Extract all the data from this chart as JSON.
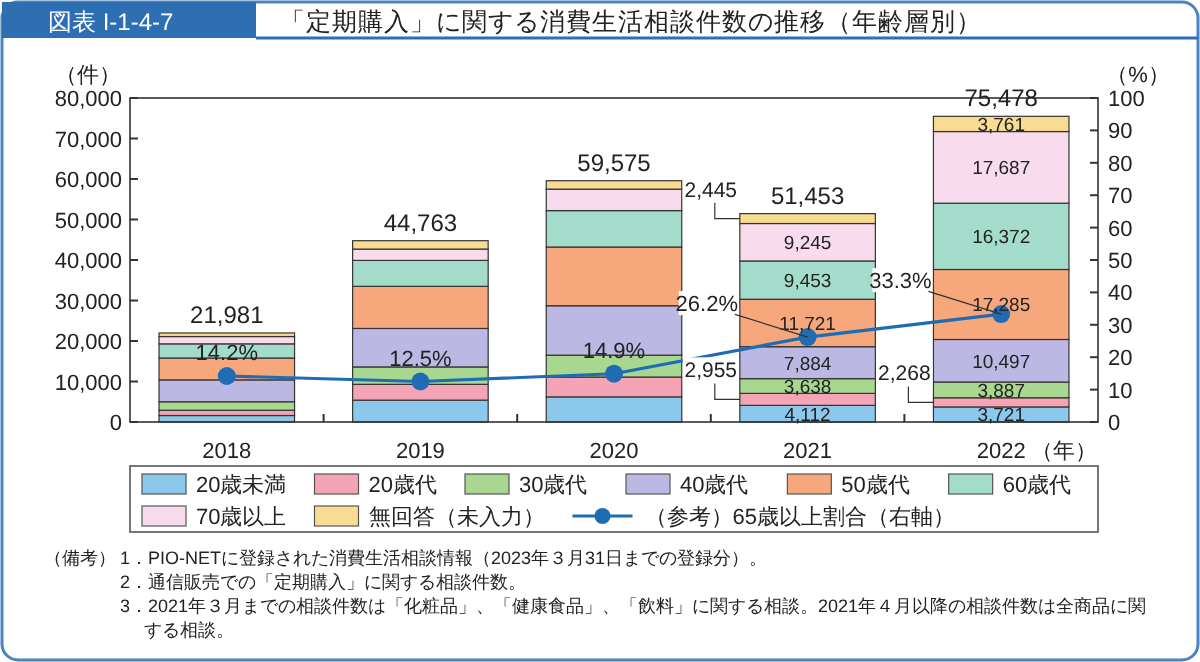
{
  "chart_data": {
    "type": "bar",
    "stacked": true,
    "title": "「定期購入」に関する消費生活相談件数の推移（年齢層別）",
    "subtitle": "図表 I-1-4-7",
    "ylabel": "（件）",
    "y2label": "（%）",
    "xlabel": "（年）",
    "categories": [
      "2018",
      "2019",
      "2020",
      "2021",
      "2022"
    ],
    "ylim": [
      0,
      80000
    ],
    "yticks": [
      {
        "value": 0,
        "label": "0"
      },
      {
        "value": 10000,
        "label": "10,000"
      },
      {
        "value": 20000,
        "label": "20,000"
      },
      {
        "value": 30000,
        "label": "30,000"
      },
      {
        "value": 40000,
        "label": "40,000"
      },
      {
        "value": 50000,
        "label": "50,000"
      },
      {
        "value": 60000,
        "label": "60,000"
      },
      {
        "value": 70000,
        "label": "70,000"
      },
      {
        "value": 80000,
        "label": "80,000"
      }
    ],
    "y2lim": [
      0,
      100
    ],
    "y2ticks": [
      0,
      10,
      20,
      30,
      40,
      50,
      60,
      70,
      80,
      90,
      100
    ],
    "series": [
      {
        "name": "20歳未満",
        "color": "#8cc8ec",
        "values": [
          1600,
          5400,
          6200,
          4112,
          3721
        ],
        "value_labels": [
          null,
          null,
          null,
          "4,112",
          "3,721"
        ]
      },
      {
        "name": "20歳代",
        "color": "#f4a4b4",
        "values": [
          1300,
          3900,
          4900,
          2955,
          2268
        ],
        "value_labels": [
          null,
          null,
          null,
          "2,955",
          "2,268"
        ]
      },
      {
        "name": "30歳代",
        "color": "#a8d890",
        "values": [
          2100,
          4300,
          5400,
          3638,
          3887
        ],
        "value_labels": [
          null,
          null,
          null,
          "3,638",
          "3,887"
        ]
      },
      {
        "name": "40歳代",
        "color": "#bcb8e4",
        "values": [
          5400,
          9500,
          12200,
          7884,
          10497
        ],
        "value_labels": [
          null,
          null,
          null,
          "7,884",
          "10,497"
        ]
      },
      {
        "name": "50歳代",
        "color": "#f6a87c",
        "values": [
          5400,
          10400,
          14500,
          11721,
          17285
        ],
        "value_labels": [
          null,
          null,
          null,
          "11,721",
          "17,285"
        ]
      },
      {
        "name": "60歳代",
        "color": "#a4dccc",
        "values": [
          3500,
          6400,
          9000,
          9453,
          16372
        ],
        "value_labels": [
          null,
          null,
          null,
          "9,453",
          "16,372"
        ]
      },
      {
        "name": "70歳以上",
        "color": "#f8dcee",
        "values": [
          1800,
          2800,
          5300,
          9245,
          17687
        ],
        "value_labels": [
          null,
          null,
          null,
          "9,245",
          "17,687"
        ]
      },
      {
        "name": "無回答（未入力）",
        "color": "#f8dc94",
        "values": [
          881,
          2063,
          2075,
          2445,
          3761
        ],
        "value_labels": [
          null,
          null,
          null,
          "2,445",
          "3,761"
        ]
      },
      {
        "name": "（参考）65歳以上割合（右軸）",
        "type": "line",
        "axis": "y2",
        "color": "#1f6cb4",
        "marker": "circle",
        "values": [
          14.2,
          12.5,
          14.9,
          26.2,
          33.3
        ],
        "value_labels": [
          "14.2%",
          "12.5%",
          "14.9%",
          "26.2%",
          "33.3%"
        ]
      }
    ],
    "totals": [
      "21,981",
      "44,763",
      "59,575",
      "51,453",
      "75,478"
    ],
    "legend": "bottom",
    "annotations": [
      "（備考）",
      "1．PIO-NETに登録された消費生活相談情報（2023年３月31日までの登録分）。",
      "2．通信販売での「定期購入」に関する相談件数。",
      "3．2021年３月までの相談件数は「化粧品」、「健康食品」、「飲料」に関する相談。2021年４月以降の相談件数は全商品に関する相談。"
    ]
  }
}
